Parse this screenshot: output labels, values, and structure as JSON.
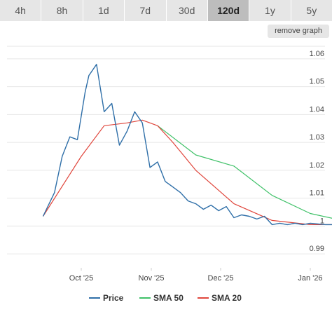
{
  "tabs": [
    {
      "label": "4h",
      "active": false
    },
    {
      "label": "8h",
      "active": false
    },
    {
      "label": "1d",
      "active": false
    },
    {
      "label": "7d",
      "active": false
    },
    {
      "label": "30d",
      "active": false
    },
    {
      "label": "120d",
      "active": true
    },
    {
      "label": "1y",
      "active": false
    },
    {
      "label": "5y",
      "active": false
    }
  ],
  "remove_graph_label": "remove graph",
  "colors": {
    "price": "#2f6fa8",
    "sma50": "#3fc168",
    "sma20": "#e0463c",
    "grid": "#e6e6e6",
    "tab_bg": "#e6e6e6",
    "tab_active_bg": "#bdbdbd"
  },
  "chart_data": {
    "type": "line",
    "title": "",
    "xlabel": "",
    "ylabel": "",
    "x_ticks": [
      "Oct '25",
      "Nov '25",
      "Dec '25",
      "Jan '26"
    ],
    "y_ticks": [
      "0.99",
      "1",
      "1.01",
      "1.02",
      "1.03",
      "1.04",
      "1.05",
      "1.06"
    ],
    "ylim": [
      0.985,
      1.065
    ],
    "grid": true,
    "legend_position": "bottom",
    "series": [
      {
        "name": "Price",
        "x": [
          -0.5,
          -0.35,
          -0.25,
          -0.15,
          -0.05,
          0.05,
          0.1,
          0.2,
          0.3,
          0.4,
          0.5,
          0.6,
          0.7,
          0.8,
          0.9,
          1.0,
          1.1,
          1.2,
          1.3,
          1.4,
          1.5,
          1.6,
          1.7,
          1.8,
          1.9,
          2.0,
          2.1,
          2.2,
          2.3,
          2.4,
          2.5,
          2.6,
          2.7,
          2.8,
          2.9,
          3.0,
          3.2,
          3.4,
          3.6,
          3.8,
          4.0
        ],
        "values": [
          1.0035,
          1.012,
          1.025,
          1.032,
          1.031,
          1.048,
          1.054,
          1.058,
          1.041,
          1.044,
          1.029,
          1.034,
          1.041,
          1.037,
          1.021,
          1.023,
          1.016,
          1.014,
          1.012,
          1.009,
          1.008,
          1.006,
          1.0075,
          1.0055,
          1.007,
          1.003,
          1.004,
          1.0035,
          1.0025,
          1.0035,
          1.0005,
          1.001,
          1.0005,
          1.001,
          1.0005,
          1.001,
          1.0005,
          1.0005,
          1.001,
          1.001,
          1.0005
        ]
      },
      {
        "name": "SMA 50",
        "x": [
          1.0,
          1.5,
          2.0,
          2.5,
          3.0,
          3.5,
          4.0
        ],
        "values": [
          1.036,
          1.0255,
          1.0215,
          1.011,
          1.0045,
          1.0015,
          1.0008
        ]
      },
      {
        "name": "SMA 20",
        "x": [
          -0.5,
          0.0,
          0.3,
          0.6,
          0.8,
          1.0,
          1.2,
          1.5,
          2.0,
          2.5,
          3.0,
          3.5,
          4.0
        ],
        "values": [
          1.0035,
          1.025,
          1.036,
          1.037,
          1.038,
          1.036,
          1.03,
          1.02,
          1.008,
          1.002,
          1.0005,
          1.0005,
          1.0008
        ]
      }
    ]
  }
}
